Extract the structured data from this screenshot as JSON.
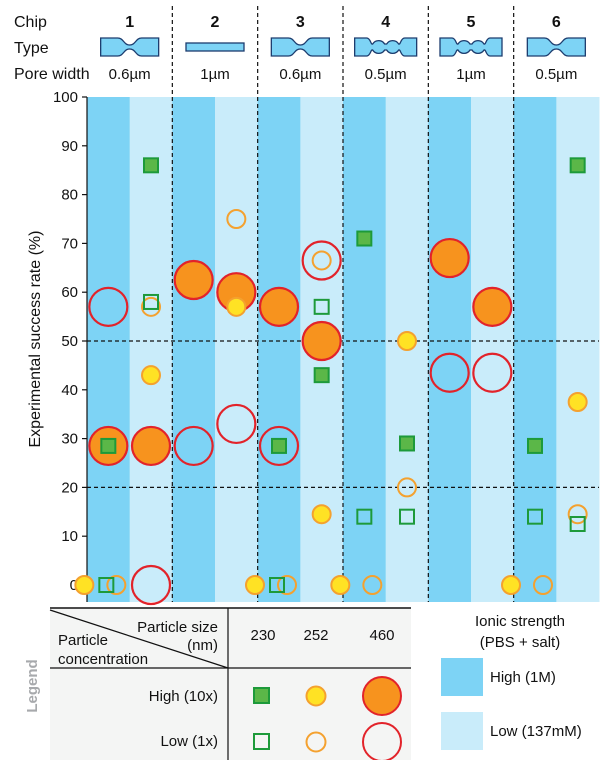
{
  "header": {
    "chip_label": "Chip",
    "type_label": "Type",
    "pore_label": "Pore width",
    "chips": [
      {
        "id": "1",
        "type": "constriction",
        "pore": "0.6µm"
      },
      {
        "id": "2",
        "type": "straight",
        "pore": "1µm"
      },
      {
        "id": "3",
        "type": "constriction",
        "pore": "0.6µm"
      },
      {
        "id": "4",
        "type": "multi-bulb",
        "pore": "0.5µm"
      },
      {
        "id": "5",
        "type": "multi-bulb",
        "pore": "1µm"
      },
      {
        "id": "6",
        "type": "constriction",
        "pore": "0.5µm"
      }
    ]
  },
  "colors": {
    "high_strength": "#7dd3f5",
    "low_strength": "#c9ecfa",
    "green_fill": "#5bb748",
    "green_stroke": "#1d9a3a",
    "yellow_fill": "#ffe224",
    "orange_stroke": "#f4a12f",
    "orange_fill": "#f7931e",
    "red_stroke": "#e2232a",
    "legend_bg": "#f4f5f4"
  },
  "chart_data": {
    "type": "scatter",
    "ylabel": "Experimental success rate (%)",
    "ylim": [
      0,
      100
    ],
    "yticks": [
      "0",
      "10",
      "20",
      "30",
      "40",
      "50",
      "60",
      "70",
      "80",
      "90",
      "100"
    ],
    "reference_lines": [
      20,
      50
    ],
    "columns": [
      {
        "chip": "1",
        "strength": "high"
      },
      {
        "chip": "1",
        "strength": "low"
      },
      {
        "chip": "2",
        "strength": "high"
      },
      {
        "chip": "2",
        "strength": "low"
      },
      {
        "chip": "3",
        "strength": "high"
      },
      {
        "chip": "3",
        "strength": "low"
      },
      {
        "chip": "4",
        "strength": "high"
      },
      {
        "chip": "4",
        "strength": "low"
      },
      {
        "chip": "5",
        "strength": "high"
      },
      {
        "chip": "5",
        "strength": "low"
      },
      {
        "chip": "6",
        "strength": "high"
      },
      {
        "chip": "6",
        "strength": "low"
      }
    ],
    "points": [
      {
        "col": 0,
        "size": 460,
        "conc": "low",
        "y": 57
      },
      {
        "col": 0,
        "size": 460,
        "conc": "high",
        "y": 28.5
      },
      {
        "col": 0,
        "size": 230,
        "conc": "high",
        "y": 28.5
      },
      {
        "col": 0,
        "size": 252,
        "conc": "high",
        "y": 0
      },
      {
        "col": 0,
        "size": 230,
        "conc": "low",
        "y": 0
      },
      {
        "col": 0,
        "size": 252,
        "conc": "low",
        "y": 0
      },
      {
        "col": 1,
        "size": 230,
        "conc": "high",
        "y": 86
      },
      {
        "col": 1,
        "size": 230,
        "conc": "low",
        "y": 58
      },
      {
        "col": 1,
        "size": 252,
        "conc": "low",
        "y": 57
      },
      {
        "col": 1,
        "size": 252,
        "conc": "high",
        "y": 43
      },
      {
        "col": 1,
        "size": 460,
        "conc": "high",
        "y": 28.5
      },
      {
        "col": 1,
        "size": 460,
        "conc": "low",
        "y": 0
      },
      {
        "col": 2,
        "size": 460,
        "conc": "high",
        "y": 62.5
      },
      {
        "col": 2,
        "size": 460,
        "conc": "low",
        "y": 28.5
      },
      {
        "col": 3,
        "size": 252,
        "conc": "low",
        "y": 75
      },
      {
        "col": 3,
        "size": 460,
        "conc": "high",
        "y": 60
      },
      {
        "col": 3,
        "size": 252,
        "conc": "high",
        "y": 57
      },
      {
        "col": 3,
        "size": 460,
        "conc": "low",
        "y": 33
      },
      {
        "col": 4,
        "size": 460,
        "conc": "high",
        "y": 57
      },
      {
        "col": 4,
        "size": 460,
        "conc": "low",
        "y": 28.5
      },
      {
        "col": 4,
        "size": 230,
        "conc": "high",
        "y": 28.5
      },
      {
        "col": 4,
        "size": 252,
        "conc": "high",
        "y": 0
      },
      {
        "col": 4,
        "size": 230,
        "conc": "low",
        "y": 0
      },
      {
        "col": 4,
        "size": 252,
        "conc": "low",
        "y": 0
      },
      {
        "col": 5,
        "size": 460,
        "conc": "low",
        "y": 66.5
      },
      {
        "col": 5,
        "size": 252,
        "conc": "low",
        "y": 66.5
      },
      {
        "col": 5,
        "size": 230,
        "conc": "low",
        "y": 57
      },
      {
        "col": 5,
        "size": 460,
        "conc": "high",
        "y": 50
      },
      {
        "col": 5,
        "size": 230,
        "conc": "high",
        "y": 43
      },
      {
        "col": 5,
        "size": 252,
        "conc": "high",
        "y": 14.5
      },
      {
        "col": 6,
        "size": 230,
        "conc": "high",
        "y": 71
      },
      {
        "col": 6,
        "size": 230,
        "conc": "low",
        "y": 14
      },
      {
        "col": 6,
        "size": 252,
        "conc": "high",
        "y": 0
      },
      {
        "col": 6,
        "size": 252,
        "conc": "low",
        "y": 0
      },
      {
        "col": 7,
        "size": 252,
        "conc": "high",
        "y": 50
      },
      {
        "col": 7,
        "size": 230,
        "conc": "high",
        "y": 29
      },
      {
        "col": 7,
        "size": 252,
        "conc": "low",
        "y": 20
      },
      {
        "col": 7,
        "size": 230,
        "conc": "low",
        "y": 14
      },
      {
        "col": 8,
        "size": 460,
        "conc": "high",
        "y": 67
      },
      {
        "col": 8,
        "size": 460,
        "conc": "low",
        "y": 43.5
      },
      {
        "col": 9,
        "size": 460,
        "conc": "high",
        "y": 57
      },
      {
        "col": 9,
        "size": 460,
        "conc": "low",
        "y": 43.5
      },
      {
        "col": 10,
        "size": 230,
        "conc": "high",
        "y": 28.5
      },
      {
        "col": 10,
        "size": 230,
        "conc": "low",
        "y": 14
      },
      {
        "col": 10,
        "size": 252,
        "conc": "high",
        "y": 0
      },
      {
        "col": 10,
        "size": 252,
        "conc": "low",
        "y": 0
      },
      {
        "col": 11,
        "size": 230,
        "conc": "high",
        "y": 86
      },
      {
        "col": 11,
        "size": 252,
        "conc": "high",
        "y": 37.5
      },
      {
        "col": 11,
        "size": 252,
        "conc": "low",
        "y": 14.5
      },
      {
        "col": 11,
        "size": 230,
        "conc": "low",
        "y": 12.5
      }
    ]
  },
  "legend": {
    "title": "Legend",
    "particle_size_label": "Particle size",
    "particle_size_unit": "(nm)",
    "particle_conc_label": "Particle",
    "particle_conc_label2": "concentration",
    "sizes": [
      "230",
      "252",
      "460"
    ],
    "conc_high": "High (10x)",
    "conc_low": "Low (1x)",
    "ionic_title": "Ionic strength",
    "ionic_subtitle": "(PBS + salt)",
    "ionic_high": "High (1M)",
    "ionic_low": "Low (137mM)"
  }
}
